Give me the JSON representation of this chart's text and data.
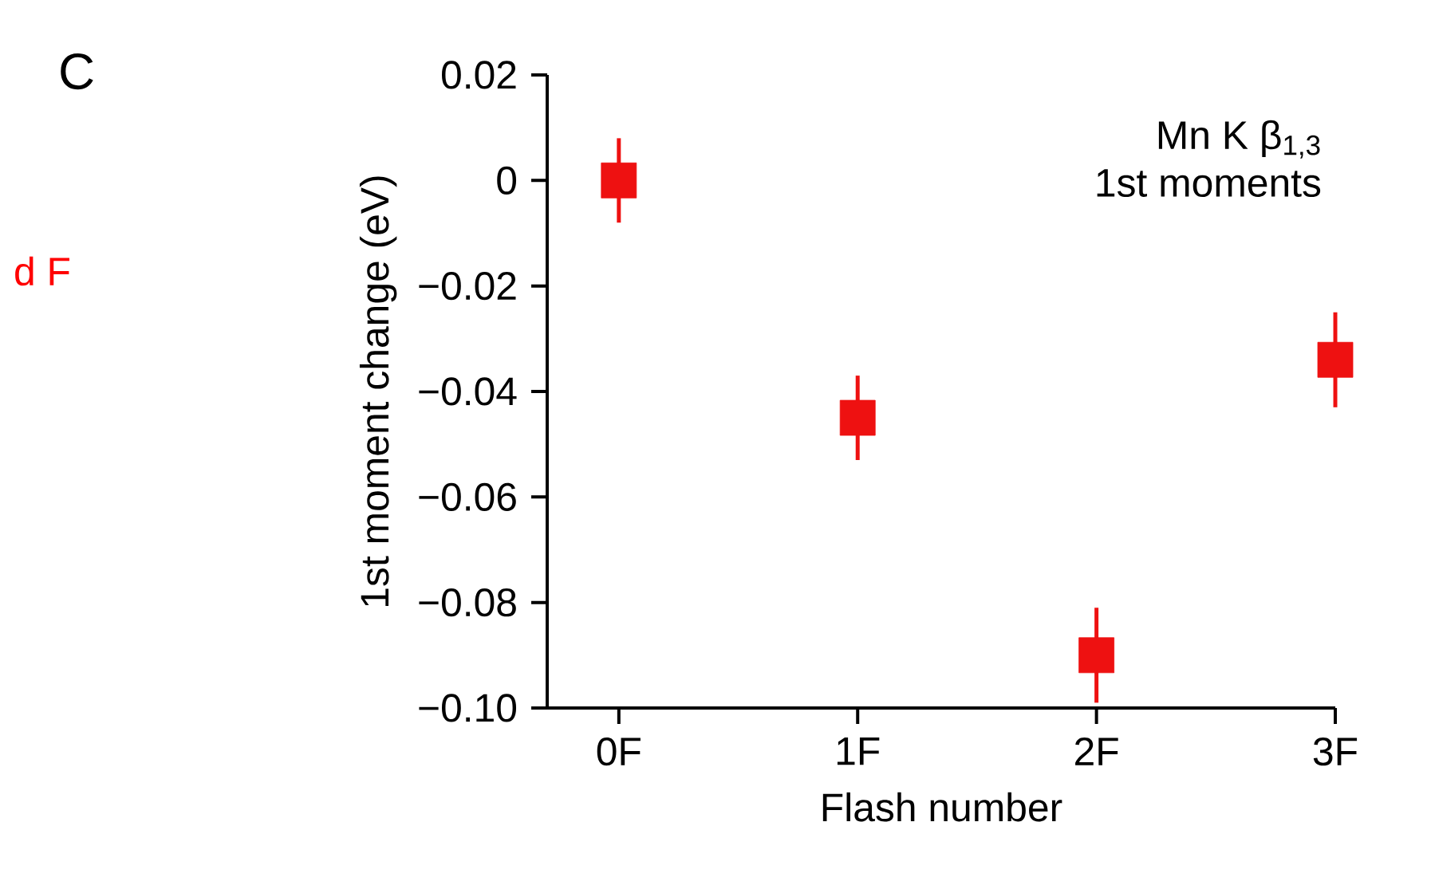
{
  "chart_data": {
    "type": "scatter",
    "xlabel": "Flash number",
    "ylabel": "1st moment change (eV)",
    "categories": [
      "0F",
      "1F",
      "2F",
      "3F"
    ],
    "series": [
      {
        "color": "#ee1111",
        "values": [
          0,
          -0.045,
          -0.09,
          -0.034
        ],
        "errors": [
          0.008,
          0.008,
          0.009,
          0.009
        ]
      }
    ],
    "ylim": [
      -0.1,
      0.02
    ],
    "yticks": [
      {
        "value": -0.1,
        "label": "−0.10"
      },
      {
        "value": -0.08,
        "label": "−0.08"
      },
      {
        "value": -0.06,
        "label": "−0.06"
      },
      {
        "value": -0.04,
        "label": "−0.04"
      },
      {
        "value": -0.02,
        "label": "−0.02"
      },
      0,
      0.02
    ],
    "marker": "square",
    "grid": false,
    "annotations": [
      "C",
      "Mn K β$_{1,3}$",
      "1st moments",
      "d F"
    ]
  }
}
